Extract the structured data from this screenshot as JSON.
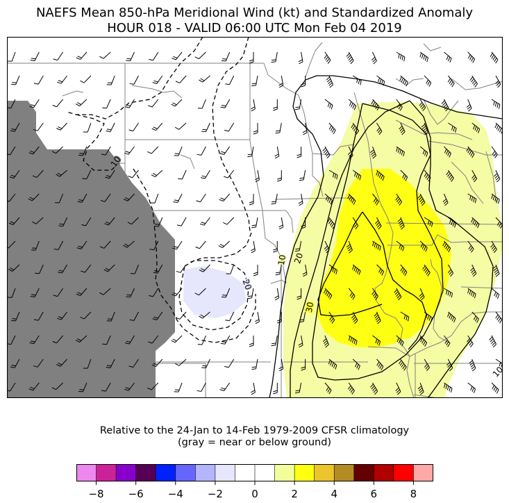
{
  "title_line1": "NAEFS Mean 850-hPa Meridional Wind (kt) and Standardized Anomaly",
  "title_line2": "HOUR 018 - VALID 06:00 UTC Mon Feb 04 2019",
  "note_line1": "Relative to the 24-Jan to 14-Feb 1979-2009 CFSR climatology",
  "note_line2": "(gray = near or below ground)",
  "contour_labels": [
    "10",
    "20",
    "10",
    "20",
    "30",
    "10"
  ],
  "colorbar": {
    "ticks": [
      "−8",
      "−6",
      "−4",
      "−2",
      "0",
      "2",
      "4",
      "6",
      "8"
    ],
    "colors": [
      "#ee88ee",
      "#cc2299",
      "#8800cc",
      "#550055",
      "#0022ff",
      "#6666ff",
      "#b4b4ff",
      "#e6e6ff",
      "#ffffff",
      "#ffffff",
      "#f2fe9c",
      "#ffff10",
      "#ecc42c",
      "#b48c24",
      "#640000",
      "#b00000",
      "#ff0000",
      "#ffa8a8"
    ]
  },
  "colors": {
    "ground": "#808080",
    "anomaly_plus_1": "#f4fca4",
    "anomaly_plus_2": "#ffff14",
    "anomaly_minus_1": "#e6e6fc",
    "boundary": "#808080"
  }
}
